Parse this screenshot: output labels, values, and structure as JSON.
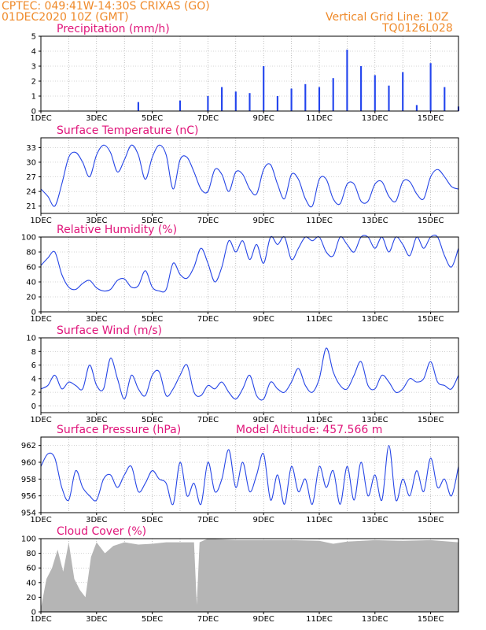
{
  "header": {
    "line1": "CPTEC:  049:41W-14:30S  CRIXAS (GO)",
    "line2": "01DEC2020 10Z (GMT)",
    "grid_note": "Vertical Grid Line: 10Z",
    "run_code": "TQ0126L028"
  },
  "model_altitude": "Model Altitude: 457.566 m",
  "colors": {
    "line": "#2545e6",
    "bar": "#2244ee",
    "cloud": "#b5b5b5",
    "title": "#e0157a",
    "header": "#ef8a2a"
  },
  "x_ticks": [
    "1DEC",
    "3DEC",
    "5DEC",
    "7DEC",
    "9DEC",
    "11DEC",
    "13DEC",
    "15DEC"
  ],
  "chart_data": [
    {
      "type": "bar",
      "title": "Precipitation (mm/h)",
      "ylim": [
        0,
        5
      ],
      "yticks": [
        "0",
        "1",
        "2",
        "3",
        "4",
        "5"
      ],
      "days": [
        1.0,
        1.5,
        2.0,
        2.5,
        3.0,
        3.5,
        4.0,
        4.5,
        5.0,
        5.5,
        6.0,
        6.5,
        7.0,
        7.5,
        8.0,
        8.5,
        9.0,
        9.5,
        10.0,
        10.5,
        11.0,
        11.5,
        12.0,
        12.5,
        13.0,
        13.5,
        14.0,
        14.5,
        15.0,
        15.5,
        16.0
      ],
      "values": [
        0,
        0,
        0,
        0,
        0,
        0,
        0,
        0.6,
        0,
        0,
        0.7,
        0,
        1.0,
        1.6,
        1.3,
        1.2,
        3.0,
        1.0,
        1.5,
        1.8,
        1.6,
        2.2,
        4.1,
        3.0,
        2.4,
        1.7,
        2.6,
        0.4,
        3.2,
        1.6,
        0.3
      ]
    },
    {
      "type": "line",
      "title": "Surface Temperature (nC)",
      "ylim": [
        19.5,
        35
      ],
      "yticks": [
        "21",
        "24",
        "27",
        "30",
        "33"
      ],
      "x": [
        1.0,
        1.25,
        1.5,
        1.75,
        2.0,
        2.25,
        2.5,
        2.75,
        3.0,
        3.25,
        3.5,
        3.75,
        4.0,
        4.25,
        4.5,
        4.75,
        5.0,
        5.25,
        5.5,
        5.75,
        6.0,
        6.25,
        6.5,
        6.75,
        7.0,
        7.25,
        7.5,
        7.75,
        8.0,
        8.25,
        8.5,
        8.75,
        9.0,
        9.25,
        9.5,
        9.75,
        10.0,
        10.25,
        10.5,
        10.75,
        11.0,
        11.25,
        11.5,
        11.75,
        12.0,
        12.25,
        12.5,
        12.75,
        13.0,
        13.25,
        13.5,
        13.75,
        14.0,
        14.25,
        14.5,
        14.75,
        15.0,
        15.25,
        15.5,
        15.75,
        16.0
      ],
      "y": [
        24.5,
        23.0,
        21.0,
        25.5,
        31.0,
        32.0,
        30.0,
        27.0,
        31.5,
        33.5,
        32.0,
        28.0,
        30.5,
        33.5,
        31.5,
        26.5,
        31.0,
        33.5,
        31.5,
        24.5,
        30.5,
        31.0,
        28.0,
        24.5,
        24.0,
        28.5,
        27.5,
        24.0,
        28.0,
        27.5,
        24.5,
        23.5,
        28.5,
        29.5,
        25.5,
        22.5,
        27.5,
        26.5,
        22.5,
        21.0,
        26.5,
        26.5,
        22.5,
        21.5,
        25.5,
        25.5,
        22.0,
        22.0,
        25.5,
        26.0,
        23.0,
        22.0,
        26.0,
        26.0,
        23.5,
        22.5,
        27.0,
        28.5,
        27.0,
        25.0,
        24.5
      ]
    },
    {
      "type": "line",
      "title": "Relative Humidity (%)",
      "ylim": [
        0,
        100
      ],
      "yticks": [
        "0",
        "20",
        "40",
        "60",
        "80",
        "100"
      ],
      "x": [
        1.0,
        1.25,
        1.5,
        1.75,
        2.0,
        2.25,
        2.5,
        2.75,
        3.0,
        3.25,
        3.5,
        3.75,
        4.0,
        4.25,
        4.5,
        4.75,
        5.0,
        5.25,
        5.5,
        5.75,
        6.0,
        6.25,
        6.5,
        6.75,
        7.0,
        7.25,
        7.5,
        7.75,
        8.0,
        8.25,
        8.5,
        8.75,
        9.0,
        9.25,
        9.5,
        9.75,
        10.0,
        10.25,
        10.5,
        10.75,
        11.0,
        11.25,
        11.5,
        11.75,
        12.0,
        12.25,
        12.5,
        12.75,
        13.0,
        13.25,
        13.5,
        13.75,
        14.0,
        14.25,
        14.5,
        14.75,
        15.0,
        15.25,
        15.5,
        15.75,
        16.0
      ],
      "y": [
        62,
        72,
        80,
        50,
        33,
        30,
        38,
        42,
        32,
        28,
        30,
        42,
        44,
        33,
        35,
        55,
        33,
        28,
        30,
        65,
        50,
        45,
        60,
        85,
        65,
        40,
        60,
        95,
        80,
        95,
        70,
        90,
        65,
        100,
        90,
        100,
        70,
        85,
        100,
        95,
        100,
        80,
        75,
        100,
        90,
        80,
        100,
        100,
        85,
        100,
        80,
        100,
        90,
        75,
        100,
        85,
        100,
        100,
        75,
        60,
        85
      ]
    },
    {
      "type": "line",
      "title": "Surface Wind (m/s)",
      "ylim": [
        -1,
        10
      ],
      "yticks": [
        "0",
        "2",
        "4",
        "6",
        "8",
        "10"
      ],
      "x": [
        1.0,
        1.25,
        1.5,
        1.75,
        2.0,
        2.25,
        2.5,
        2.75,
        3.0,
        3.25,
        3.5,
        3.75,
        4.0,
        4.25,
        4.5,
        4.75,
        5.0,
        5.25,
        5.5,
        5.75,
        6.0,
        6.25,
        6.5,
        6.75,
        7.0,
        7.25,
        7.5,
        7.75,
        8.0,
        8.25,
        8.5,
        8.75,
        9.0,
        9.25,
        9.5,
        9.75,
        10.0,
        10.25,
        10.5,
        10.75,
        11.0,
        11.25,
        11.5,
        11.75,
        12.0,
        12.25,
        12.5,
        12.75,
        13.0,
        13.25,
        13.5,
        13.75,
        14.0,
        14.25,
        14.5,
        14.75,
        15.0,
        15.25,
        15.5,
        15.75,
        16.0
      ],
      "y": [
        2.5,
        3.0,
        4.5,
        2.5,
        3.5,
        3.0,
        2.5,
        6.0,
        3.0,
        2.5,
        7.0,
        4.0,
        1.0,
        4.5,
        2.5,
        1.5,
        4.5,
        5.0,
        1.5,
        2.5,
        4.5,
        6.0,
        2.0,
        1.5,
        3.0,
        2.5,
        3.5,
        2.0,
        1.0,
        2.5,
        4.5,
        1.5,
        1.0,
        3.5,
        2.5,
        2.0,
        3.5,
        5.5,
        3.0,
        2.0,
        4.0,
        8.5,
        5.0,
        3.0,
        2.5,
        4.5,
        6.5,
        3.0,
        2.5,
        4.5,
        3.5,
        2.0,
        2.5,
        4.0,
        3.5,
        4.0,
        6.5,
        3.5,
        3.0,
        2.5,
        4.5
      ]
    },
    {
      "type": "line",
      "title": "Surface Pressure (hPa)",
      "ylim": [
        954,
        963
      ],
      "yticks": [
        "954",
        "956",
        "958",
        "960",
        "962"
      ],
      "x": [
        1.0,
        1.25,
        1.5,
        1.75,
        2.0,
        2.25,
        2.5,
        2.75,
        3.0,
        3.25,
        3.5,
        3.75,
        4.0,
        4.25,
        4.5,
        4.75,
        5.0,
        5.25,
        5.5,
        5.75,
        6.0,
        6.25,
        6.5,
        6.75,
        7.0,
        7.25,
        7.5,
        7.75,
        8.0,
        8.25,
        8.5,
        8.75,
        9.0,
        9.25,
        9.5,
        9.75,
        10.0,
        10.25,
        10.5,
        10.75,
        11.0,
        11.25,
        11.5,
        11.75,
        12.0,
        12.25,
        12.5,
        12.75,
        13.0,
        13.25,
        13.5,
        13.75,
        14.0,
        14.25,
        14.5,
        14.75,
        15.0,
        15.25,
        15.5,
        15.75,
        16.0
      ],
      "y": [
        959.5,
        961.0,
        960.5,
        957.0,
        955.5,
        959.0,
        957.0,
        956.0,
        955.5,
        958.0,
        958.5,
        957.0,
        958.5,
        959.5,
        956.5,
        957.5,
        959.0,
        958.0,
        957.5,
        955.0,
        960.0,
        956.0,
        957.5,
        955.0,
        960.0,
        956.5,
        958.0,
        961.5,
        957.0,
        960.0,
        956.5,
        958.5,
        961.0,
        955.5,
        958.5,
        955.0,
        959.5,
        956.5,
        958.0,
        955.0,
        959.5,
        957.0,
        959.0,
        955.0,
        959.5,
        955.5,
        960.0,
        956.0,
        958.5,
        955.5,
        962.0,
        955.5,
        958.0,
        956.0,
        959.0,
        956.5,
        960.5,
        957.0,
        958.0,
        956.0,
        959.5
      ]
    },
    {
      "type": "area",
      "title": "Cloud Cover (%)",
      "ylim": [
        0,
        100
      ],
      "yticks": [
        "0",
        "20",
        "40",
        "60",
        "80",
        "100"
      ],
      "x": [
        1.0,
        1.2,
        1.4,
        1.6,
        1.8,
        2.0,
        2.2,
        2.4,
        2.6,
        2.8,
        3.0,
        3.3,
        3.6,
        4.0,
        4.5,
        5.0,
        5.5,
        6.0,
        6.5,
        6.6,
        6.7,
        7.0,
        8.0,
        9.0,
        10.0,
        11.0,
        11.5,
        12.0,
        13.0,
        14.0,
        15.0,
        16.0
      ],
      "y": [
        5,
        45,
        60,
        85,
        55,
        95,
        45,
        30,
        20,
        75,
        95,
        80,
        90,
        95,
        92,
        93,
        95,
        95,
        95,
        10,
        95,
        100,
        98,
        98,
        98,
        97,
        93,
        96,
        98,
        97,
        98,
        95
      ]
    }
  ]
}
